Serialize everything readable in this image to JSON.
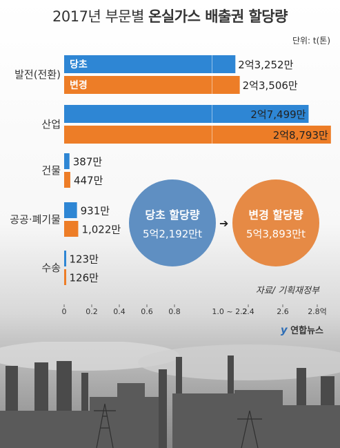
{
  "header": {
    "title_prefix": "2017년 부문별",
    "title_main": "온실가스 배출권 할당량",
    "unit": "단위: t(톤)"
  },
  "source": "자료/ 기획재정부",
  "logo": {
    "mark": "y",
    "text": "연합뉴스",
    "icon": "yonhap-logo"
  },
  "colors": {
    "before": "#2e86d4",
    "after": "#ed7d27",
    "circle_before": "#5f8fc2",
    "circle_after": "#e68a45"
  },
  "chart_data": {
    "type": "bar",
    "orientation": "horizontal",
    "title": "2017년 부문별 온실가스 배출권 할당량",
    "unit": "단위: t(톤)",
    "axis_break": "1.0 ~ 2.2",
    "axis_unit_label": "억",
    "x_ticks": [
      "0",
      "0.2",
      "0.4",
      "0.6",
      "0.8",
      "1.0 ~ 2.2",
      "2.4",
      "2.6",
      "2.8억"
    ],
    "categories": [
      "발전(전환)",
      "산업",
      "건물",
      "공공·폐기물",
      "수송"
    ],
    "series": [
      {
        "name": "당초",
        "values": [
          232520000,
          274990000,
          3870000,
          9310000,
          1230000
        ],
        "labels": [
          "2억3,252만",
          "2억7,499만",
          "387만",
          "931만",
          "123만"
        ]
      },
      {
        "name": "변경",
        "values": [
          235060000,
          287930000,
          4470000,
          10220000,
          1260000
        ],
        "labels": [
          "2억3,506만",
          "2억8,793만",
          "447만",
          "1,022만",
          "126만"
        ]
      }
    ],
    "legend": "inside first bars",
    "grid": false
  },
  "totals": {
    "before": {
      "title": "당초 할당량",
      "value": "5억2,192만t"
    },
    "after": {
      "title": "변경 할당량",
      "value": "5억3,893만t"
    },
    "arrow": "➔"
  }
}
